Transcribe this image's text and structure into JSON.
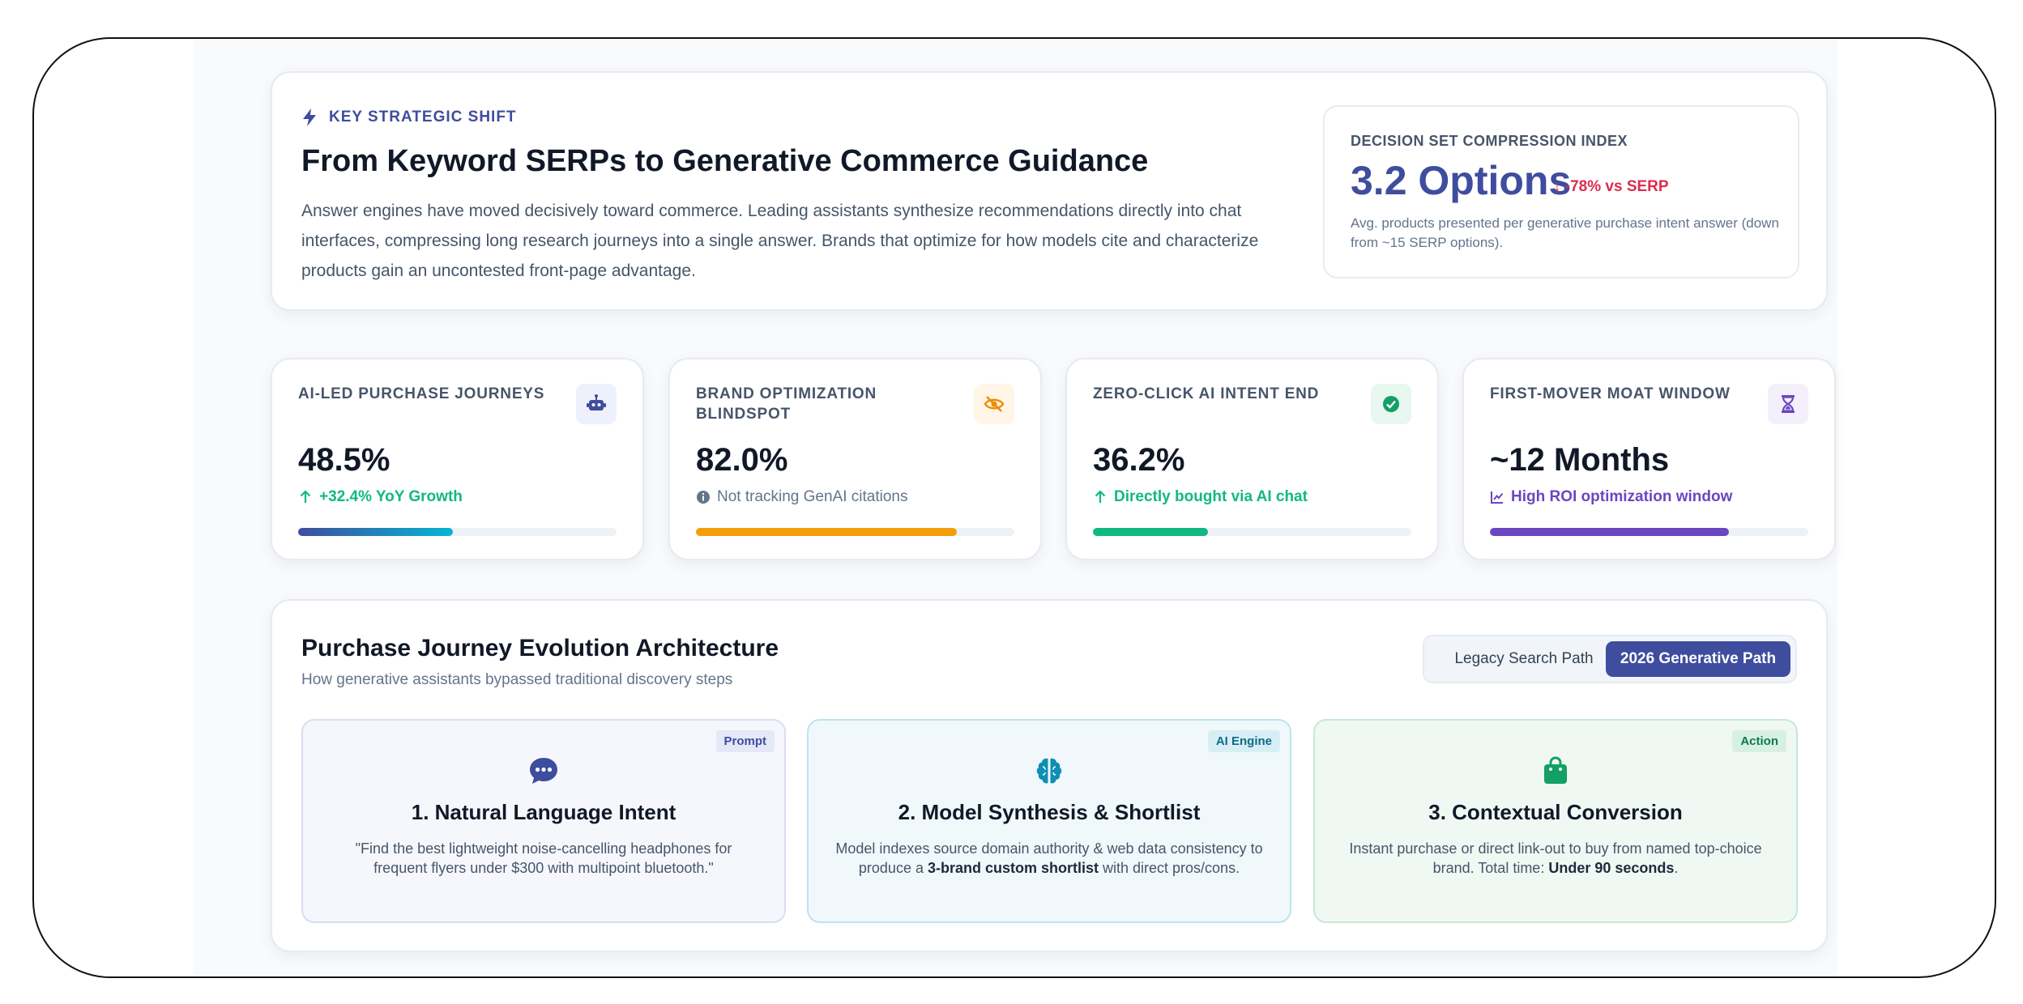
{
  "hero": {
    "eyebrow": "KEY STRATEGIC SHIFT",
    "title": "From Keyword SERPs to Generative Commerce Guidance",
    "description": "Answer engines have moved decisively toward commerce. Leading assistants synthesize recommendations directly into chat interfaces, compressing long research journeys into a single answer. Brands that optimize for how models cite and characterize products gain an uncontested front-page advantage."
  },
  "index": {
    "label": "DECISION SET COMPRESSION INDEX",
    "value": "3.2 Options",
    "change": "↓ -78% vs SERP",
    "note": "Avg. products presented per generative purchase intent answer (down from ~15 SERP options)."
  },
  "kpis": [
    {
      "label": "AI-LED PURCHASE JOURNEYS",
      "icon": "robot-icon",
      "value": "48.5%",
      "sub": "+32.4% YoY Growth",
      "sub_icon": "arrow-up-icon",
      "progress": 0.485,
      "color": "#10b981",
      "bar": [
        "#3f4d9e",
        "#06b6d4"
      ],
      "icon_bg": "#eef1fb",
      "icon_color": "#3f4d9e"
    },
    {
      "label": "BRAND OPTIMIZATION BLINDSPOT",
      "icon": "eye-slash-icon",
      "value": "82.0%",
      "sub": "Not tracking GenAI citations",
      "sub_icon": "info-icon",
      "progress": 0.82,
      "color": "#64748b",
      "bar": [
        "#f59e0b",
        "#f59e0b"
      ],
      "icon_bg": "#fff6e8",
      "icon_color": "#f08c00"
    },
    {
      "label": "ZERO-CLICK AI INTENT END",
      "icon": "check-circle-icon",
      "value": "36.2%",
      "sub": "Directly bought via AI chat",
      "sub_icon": "arrow-up-icon",
      "progress": 0.362,
      "color": "#10b981",
      "bar": [
        "#10b981",
        "#10b981"
      ],
      "icon_bg": "#e8f7ef",
      "icon_color": "#12a065"
    },
    {
      "label": "FIRST-MOVER MOAT WINDOW",
      "icon": "hourglass-icon",
      "value": "~12 Months",
      "sub": "High ROI optimization window",
      "sub_icon": "chart-line-icon",
      "progress": 0.75,
      "color": "#6b46c1",
      "bar": [
        "#6b46c1",
        "#6b46c1"
      ],
      "icon_bg": "#f3effb",
      "icon_color": "#6b46c1"
    }
  ],
  "journey": {
    "title": "Purchase Journey Evolution Architecture",
    "subtitle": "How generative assistants bypassed traditional discovery steps",
    "toggle": {
      "legacy": "Legacy Search Path",
      "generative": "2026 Generative Path",
      "active": "generative"
    },
    "steps": [
      {
        "badge": "Prompt",
        "icon": "chat-bubble-icon",
        "title": "1. Natural Language Intent",
        "desc_parts": [
          {
            "text": "\"Find the best lightweight noise-cancelling headphones for frequent flyers under $300 with multipoint bluetooth.\""
          }
        ],
        "bg": "#f6f7fc",
        "border": "#d9ddf0",
        "badge_bg": "#e4e8f7",
        "badge_color": "#3f4d9e",
        "icon_color": "#3f4d9e"
      },
      {
        "badge": "AI Engine",
        "icon": "brain-icon",
        "title": "2. Model Synthesis & Shortlist",
        "desc_parts": [
          {
            "text": "Model indexes source domain authority & web data consistency to produce a "
          },
          {
            "text": "3-brand custom shortlist",
            "bold": true
          },
          {
            "text": " with direct pros/cons."
          }
        ],
        "bg": "#f0f8fb",
        "border": "#bfe3ee",
        "badge_bg": "#d8eef5",
        "badge_color": "#0e6d86",
        "icon_color": "#0e8fb3"
      },
      {
        "badge": "Action",
        "icon": "shopping-bag-icon",
        "title": "3. Contextual Conversion",
        "desc_parts": [
          {
            "text": "Instant purchase or direct link-out to buy from named top-choice brand. Total time: "
          },
          {
            "text": "Under 90 seconds",
            "bold": true
          },
          {
            "text": "."
          }
        ],
        "bg": "#f0f8f4",
        "border": "#c6e8d6",
        "badge_bg": "#d8f0e3",
        "badge_color": "#0f7a4c",
        "icon_color": "#12a065"
      }
    ]
  }
}
